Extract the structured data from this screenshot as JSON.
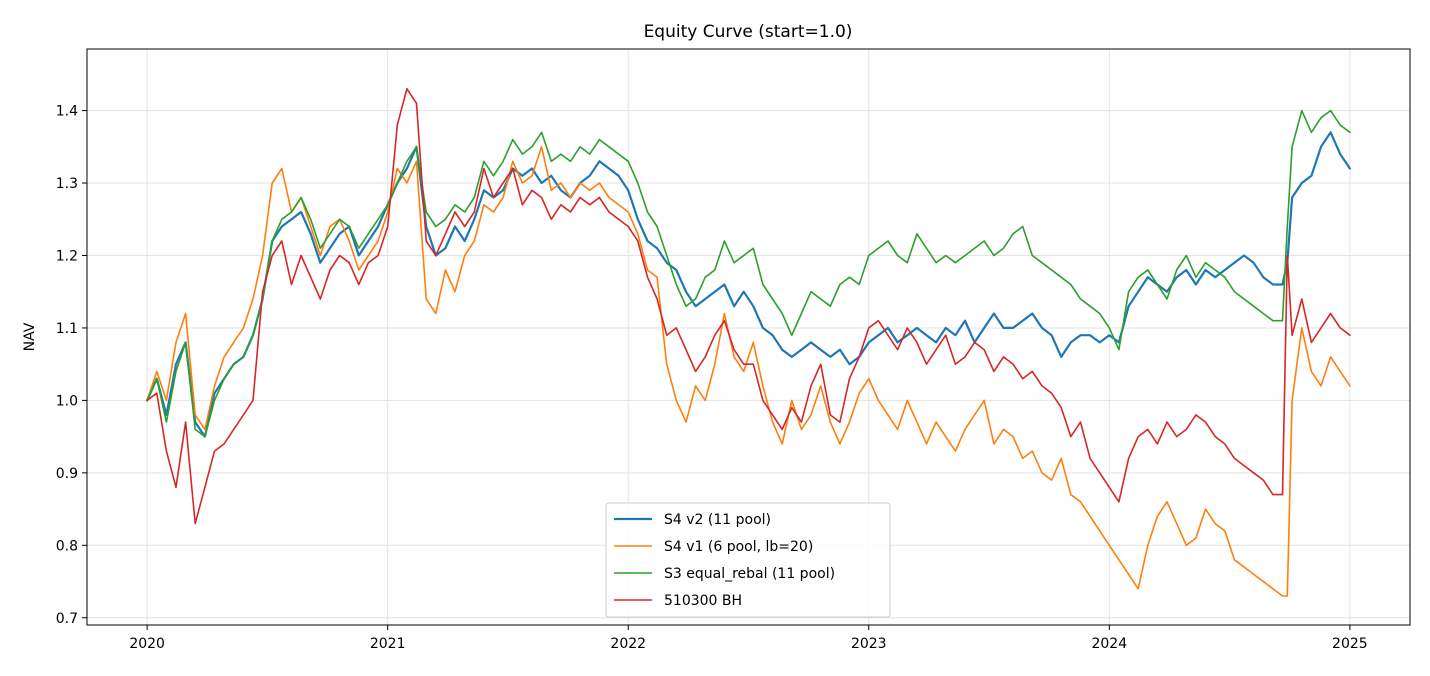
{
  "chart_data": {
    "type": "line",
    "title": "Equity Curve  (start=1.0)",
    "xlabel": "",
    "ylabel": "NAV",
    "xlim": [
      2019.75,
      2025.25
    ],
    "ylim": [
      0.69,
      1.485
    ],
    "x_ticks": [
      2020,
      2021,
      2022,
      2023,
      2024,
      2025
    ],
    "x_tick_labels": [
      "2020",
      "2021",
      "2022",
      "2023",
      "2024",
      "2025"
    ],
    "y_ticks": [
      0.7,
      0.8,
      0.9,
      1.0,
      1.1,
      1.2,
      1.3,
      1.4
    ],
    "y_tick_labels": [
      "0.7",
      "0.8",
      "0.9",
      "1.0",
      "1.1",
      "1.2",
      "1.3",
      "1.4"
    ],
    "grid": true,
    "legend_position": "lower-center",
    "series": [
      {
        "name": "S4 v2 (11 pool)",
        "color": "#1f77b4",
        "x": [
          2020.0,
          2020.04,
          2020.08,
          2020.12,
          2020.16,
          2020.2,
          2020.24,
          2020.28,
          2020.32,
          2020.36,
          2020.4,
          2020.44,
          2020.48,
          2020.52,
          2020.56,
          2020.6,
          2020.64,
          2020.68,
          2020.72,
          2020.76,
          2020.8,
          2020.84,
          2020.88,
          2020.92,
          2020.96,
          2021.0,
          2021.04,
          2021.08,
          2021.12,
          2021.16,
          2021.2,
          2021.24,
          2021.28,
          2021.32,
          2021.36,
          2021.4,
          2021.44,
          2021.48,
          2021.52,
          2021.56,
          2021.6,
          2021.64,
          2021.68,
          2021.72,
          2021.76,
          2021.8,
          2021.84,
          2021.88,
          2021.92,
          2021.96,
          2022.0,
          2022.04,
          2022.08,
          2022.12,
          2022.16,
          2022.2,
          2022.24,
          2022.28,
          2022.32,
          2022.36,
          2022.4,
          2022.44,
          2022.48,
          2022.52,
          2022.56,
          2022.6,
          2022.64,
          2022.68,
          2022.72,
          2022.76,
          2022.8,
          2022.84,
          2022.88,
          2022.92,
          2022.96,
          2023.0,
          2023.04,
          2023.08,
          2023.12,
          2023.16,
          2023.2,
          2023.24,
          2023.28,
          2023.32,
          2023.36,
          2023.4,
          2023.44,
          2023.48,
          2023.52,
          2023.56,
          2023.6,
          2023.64,
          2023.68,
          2023.72,
          2023.76,
          2023.8,
          2023.84,
          2023.88,
          2023.92,
          2023.96,
          2024.0,
          2024.04,
          2024.08,
          2024.12,
          2024.16,
          2024.2,
          2024.24,
          2024.28,
          2024.32,
          2024.36,
          2024.4,
          2024.44,
          2024.48,
          2024.52,
          2024.56,
          2024.6,
          2024.64,
          2024.68,
          2024.72,
          2024.74,
          2024.76,
          2024.8,
          2024.84,
          2024.88,
          2024.92,
          2024.96,
          2025.0
        ],
        "y": [
          1.0,
          1.03,
          0.98,
          1.05,
          1.08,
          0.97,
          0.95,
          1.01,
          1.03,
          1.05,
          1.06,
          1.09,
          1.14,
          1.22,
          1.24,
          1.25,
          1.26,
          1.23,
          1.19,
          1.21,
          1.23,
          1.24,
          1.2,
          1.22,
          1.24,
          1.27,
          1.3,
          1.32,
          1.35,
          1.24,
          1.2,
          1.21,
          1.24,
          1.22,
          1.25,
          1.29,
          1.28,
          1.29,
          1.32,
          1.31,
          1.32,
          1.3,
          1.31,
          1.29,
          1.28,
          1.3,
          1.31,
          1.33,
          1.32,
          1.31,
          1.29,
          1.25,
          1.22,
          1.21,
          1.19,
          1.18,
          1.15,
          1.13,
          1.14,
          1.15,
          1.16,
          1.13,
          1.15,
          1.13,
          1.1,
          1.09,
          1.07,
          1.06,
          1.07,
          1.08,
          1.07,
          1.06,
          1.07,
          1.05,
          1.06,
          1.08,
          1.09,
          1.1,
          1.08,
          1.09,
          1.1,
          1.09,
          1.08,
          1.1,
          1.09,
          1.11,
          1.08,
          1.1,
          1.12,
          1.1,
          1.1,
          1.11,
          1.12,
          1.1,
          1.09,
          1.06,
          1.08,
          1.09,
          1.09,
          1.08,
          1.09,
          1.08,
          1.13,
          1.15,
          1.17,
          1.16,
          1.15,
          1.17,
          1.18,
          1.16,
          1.18,
          1.17,
          1.18,
          1.19,
          1.2,
          1.19,
          1.17,
          1.16,
          1.16,
          1.19,
          1.28,
          1.3,
          1.31,
          1.35,
          1.37,
          1.34,
          1.32
        ],
        "line_width": 2.2
      },
      {
        "name": "S4 v1 (6 pool, lb=20)",
        "color": "#ff7f0e",
        "x": [
          2020.0,
          2020.04,
          2020.08,
          2020.12,
          2020.16,
          2020.2,
          2020.24,
          2020.28,
          2020.32,
          2020.36,
          2020.4,
          2020.44,
          2020.48,
          2020.52,
          2020.56,
          2020.6,
          2020.64,
          2020.68,
          2020.72,
          2020.76,
          2020.8,
          2020.84,
          2020.88,
          2020.92,
          2020.96,
          2021.0,
          2021.04,
          2021.08,
          2021.12,
          2021.16,
          2021.2,
          2021.24,
          2021.28,
          2021.32,
          2021.36,
          2021.4,
          2021.44,
          2021.48,
          2021.52,
          2021.56,
          2021.6,
          2021.64,
          2021.68,
          2021.72,
          2021.76,
          2021.8,
          2021.84,
          2021.88,
          2021.92,
          2021.96,
          2022.0,
          2022.04,
          2022.08,
          2022.12,
          2022.16,
          2022.2,
          2022.24,
          2022.28,
          2022.32,
          2022.36,
          2022.4,
          2022.44,
          2022.48,
          2022.52,
          2022.56,
          2022.6,
          2022.64,
          2022.68,
          2022.72,
          2022.76,
          2022.8,
          2022.84,
          2022.88,
          2022.92,
          2022.96,
          2023.0,
          2023.04,
          2023.08,
          2023.12,
          2023.16,
          2023.2,
          2023.24,
          2023.28,
          2023.32,
          2023.36,
          2023.4,
          2023.44,
          2023.48,
          2023.52,
          2023.56,
          2023.6,
          2023.64,
          2023.68,
          2023.72,
          2023.76,
          2023.8,
          2023.84,
          2023.88,
          2023.92,
          2023.96,
          2024.0,
          2024.04,
          2024.08,
          2024.12,
          2024.16,
          2024.2,
          2024.24,
          2024.28,
          2024.32,
          2024.36,
          2024.4,
          2024.44,
          2024.48,
          2024.52,
          2024.56,
          2024.6,
          2024.64,
          2024.68,
          2024.72,
          2024.74,
          2024.76,
          2024.8,
          2024.84,
          2024.88,
          2024.92,
          2024.96,
          2025.0
        ],
        "y": [
          1.0,
          1.04,
          1.0,
          1.08,
          1.12,
          0.98,
          0.96,
          1.02,
          1.06,
          1.08,
          1.1,
          1.14,
          1.2,
          1.3,
          1.32,
          1.26,
          1.28,
          1.24,
          1.2,
          1.24,
          1.25,
          1.22,
          1.18,
          1.2,
          1.22,
          1.26,
          1.32,
          1.3,
          1.33,
          1.14,
          1.12,
          1.18,
          1.15,
          1.2,
          1.22,
          1.27,
          1.26,
          1.28,
          1.33,
          1.3,
          1.31,
          1.35,
          1.29,
          1.3,
          1.28,
          1.3,
          1.29,
          1.3,
          1.28,
          1.27,
          1.26,
          1.23,
          1.18,
          1.17,
          1.05,
          1.0,
          0.97,
          1.02,
          1.0,
          1.05,
          1.12,
          1.06,
          1.04,
          1.08,
          1.02,
          0.97,
          0.94,
          1.0,
          0.96,
          0.98,
          1.02,
          0.97,
          0.94,
          0.97,
          1.01,
          1.03,
          1.0,
          0.98,
          0.96,
          1.0,
          0.97,
          0.94,
          0.97,
          0.95,
          0.93,
          0.96,
          0.98,
          1.0,
          0.94,
          0.96,
          0.95,
          0.92,
          0.93,
          0.9,
          0.89,
          0.92,
          0.87,
          0.86,
          0.84,
          0.82,
          0.8,
          0.78,
          0.76,
          0.74,
          0.8,
          0.84,
          0.86,
          0.83,
          0.8,
          0.81,
          0.85,
          0.83,
          0.82,
          0.78,
          0.77,
          0.76,
          0.75,
          0.74,
          0.73,
          0.73,
          1.0,
          1.1,
          1.04,
          1.02,
          1.06,
          1.04,
          1.02
        ],
        "line_width": 1.6
      },
      {
        "name": "S3 equal_rebal (11 pool)",
        "color": "#2ca02c",
        "x": [
          2020.0,
          2020.04,
          2020.08,
          2020.12,
          2020.16,
          2020.2,
          2020.24,
          2020.28,
          2020.32,
          2020.36,
          2020.4,
          2020.44,
          2020.48,
          2020.52,
          2020.56,
          2020.6,
          2020.64,
          2020.68,
          2020.72,
          2020.76,
          2020.8,
          2020.84,
          2020.88,
          2020.92,
          2020.96,
          2021.0,
          2021.04,
          2021.08,
          2021.12,
          2021.16,
          2021.2,
          2021.24,
          2021.28,
          2021.32,
          2021.36,
          2021.4,
          2021.44,
          2021.48,
          2021.52,
          2021.56,
          2021.6,
          2021.64,
          2021.68,
          2021.72,
          2021.76,
          2021.8,
          2021.84,
          2021.88,
          2021.92,
          2021.96,
          2022.0,
          2022.04,
          2022.08,
          2022.12,
          2022.16,
          2022.2,
          2022.24,
          2022.28,
          2022.32,
          2022.36,
          2022.4,
          2022.44,
          2022.48,
          2022.52,
          2022.56,
          2022.6,
          2022.64,
          2022.68,
          2022.72,
          2022.76,
          2022.8,
          2022.84,
          2022.88,
          2022.92,
          2022.96,
          2023.0,
          2023.04,
          2023.08,
          2023.12,
          2023.16,
          2023.2,
          2023.24,
          2023.28,
          2023.32,
          2023.36,
          2023.4,
          2023.44,
          2023.48,
          2023.52,
          2023.56,
          2023.6,
          2023.64,
          2023.68,
          2023.72,
          2023.76,
          2023.8,
          2023.84,
          2023.88,
          2023.92,
          2023.96,
          2024.0,
          2024.04,
          2024.08,
          2024.12,
          2024.16,
          2024.2,
          2024.24,
          2024.28,
          2024.32,
          2024.36,
          2024.4,
          2024.44,
          2024.48,
          2024.52,
          2024.56,
          2024.6,
          2024.64,
          2024.68,
          2024.72,
          2024.74,
          2024.76,
          2024.8,
          2024.84,
          2024.88,
          2024.92,
          2024.96,
          2025.0
        ],
        "y": [
          1.0,
          1.03,
          0.97,
          1.04,
          1.08,
          0.96,
          0.95,
          1.0,
          1.03,
          1.05,
          1.06,
          1.09,
          1.14,
          1.22,
          1.25,
          1.26,
          1.28,
          1.25,
          1.21,
          1.23,
          1.25,
          1.24,
          1.21,
          1.23,
          1.25,
          1.27,
          1.3,
          1.33,
          1.35,
          1.26,
          1.24,
          1.25,
          1.27,
          1.26,
          1.28,
          1.33,
          1.31,
          1.33,
          1.36,
          1.34,
          1.35,
          1.37,
          1.33,
          1.34,
          1.33,
          1.35,
          1.34,
          1.36,
          1.35,
          1.34,
          1.33,
          1.3,
          1.26,
          1.24,
          1.2,
          1.16,
          1.13,
          1.14,
          1.17,
          1.18,
          1.22,
          1.19,
          1.2,
          1.21,
          1.16,
          1.14,
          1.12,
          1.09,
          1.12,
          1.15,
          1.14,
          1.13,
          1.16,
          1.17,
          1.16,
          1.2,
          1.21,
          1.22,
          1.2,
          1.19,
          1.23,
          1.21,
          1.19,
          1.2,
          1.19,
          1.2,
          1.21,
          1.22,
          1.2,
          1.21,
          1.23,
          1.24,
          1.2,
          1.19,
          1.18,
          1.17,
          1.16,
          1.14,
          1.13,
          1.12,
          1.1,
          1.07,
          1.15,
          1.17,
          1.18,
          1.16,
          1.14,
          1.18,
          1.2,
          1.17,
          1.19,
          1.18,
          1.17,
          1.15,
          1.14,
          1.13,
          1.12,
          1.11,
          1.11,
          1.24,
          1.35,
          1.4,
          1.37,
          1.39,
          1.4,
          1.38,
          1.37
        ],
        "line_width": 1.6
      },
      {
        "name": "510300 BH",
        "color": "#d62728",
        "x": [
          2020.0,
          2020.04,
          2020.08,
          2020.12,
          2020.16,
          2020.2,
          2020.24,
          2020.28,
          2020.32,
          2020.36,
          2020.4,
          2020.44,
          2020.48,
          2020.52,
          2020.56,
          2020.6,
          2020.64,
          2020.68,
          2020.72,
          2020.76,
          2020.8,
          2020.84,
          2020.88,
          2020.92,
          2020.96,
          2021.0,
          2021.04,
          2021.08,
          2021.12,
          2021.16,
          2021.2,
          2021.24,
          2021.28,
          2021.32,
          2021.36,
          2021.4,
          2021.44,
          2021.48,
          2021.52,
          2021.56,
          2021.6,
          2021.64,
          2021.68,
          2021.72,
          2021.76,
          2021.8,
          2021.84,
          2021.88,
          2021.92,
          2021.96,
          2022.0,
          2022.04,
          2022.08,
          2022.12,
          2022.16,
          2022.2,
          2022.24,
          2022.28,
          2022.32,
          2022.36,
          2022.4,
          2022.44,
          2022.48,
          2022.52,
          2022.56,
          2022.6,
          2022.64,
          2022.68,
          2022.72,
          2022.76,
          2022.8,
          2022.84,
          2022.88,
          2022.92,
          2022.96,
          2023.0,
          2023.04,
          2023.08,
          2023.12,
          2023.16,
          2023.2,
          2023.24,
          2023.28,
          2023.32,
          2023.36,
          2023.4,
          2023.44,
          2023.48,
          2023.52,
          2023.56,
          2023.6,
          2023.64,
          2023.68,
          2023.72,
          2023.76,
          2023.8,
          2023.84,
          2023.88,
          2023.92,
          2023.96,
          2024.0,
          2024.04,
          2024.08,
          2024.12,
          2024.16,
          2024.2,
          2024.24,
          2024.28,
          2024.32,
          2024.36,
          2024.4,
          2024.44,
          2024.48,
          2024.52,
          2024.56,
          2024.6,
          2024.64,
          2024.68,
          2024.72,
          2024.74,
          2024.76,
          2024.8,
          2024.84,
          2024.88,
          2024.92,
          2024.96,
          2025.0
        ],
        "y": [
          1.0,
          1.01,
          0.93,
          0.88,
          0.97,
          0.83,
          0.88,
          0.93,
          0.94,
          0.96,
          0.98,
          1.0,
          1.15,
          1.2,
          1.22,
          1.16,
          1.2,
          1.17,
          1.14,
          1.18,
          1.2,
          1.19,
          1.16,
          1.19,
          1.2,
          1.24,
          1.38,
          1.43,
          1.41,
          1.22,
          1.2,
          1.23,
          1.26,
          1.24,
          1.26,
          1.32,
          1.28,
          1.3,
          1.32,
          1.27,
          1.29,
          1.28,
          1.25,
          1.27,
          1.26,
          1.28,
          1.27,
          1.28,
          1.26,
          1.25,
          1.24,
          1.22,
          1.17,
          1.14,
          1.09,
          1.1,
          1.07,
          1.04,
          1.06,
          1.09,
          1.11,
          1.07,
          1.05,
          1.05,
          1.0,
          0.98,
          0.96,
          0.99,
          0.97,
          1.02,
          1.05,
          0.98,
          0.97,
          1.03,
          1.06,
          1.1,
          1.11,
          1.09,
          1.07,
          1.1,
          1.08,
          1.05,
          1.07,
          1.09,
          1.05,
          1.06,
          1.08,
          1.07,
          1.04,
          1.06,
          1.05,
          1.03,
          1.04,
          1.02,
          1.01,
          0.99,
          0.95,
          0.97,
          0.92,
          0.9,
          0.88,
          0.86,
          0.92,
          0.95,
          0.96,
          0.94,
          0.97,
          0.95,
          0.96,
          0.98,
          0.97,
          0.95,
          0.94,
          0.92,
          0.91,
          0.9,
          0.89,
          0.87,
          0.87,
          1.2,
          1.09,
          1.14,
          1.08,
          1.1,
          1.12,
          1.1,
          1.09
        ],
        "line_width": 1.6
      }
    ]
  }
}
